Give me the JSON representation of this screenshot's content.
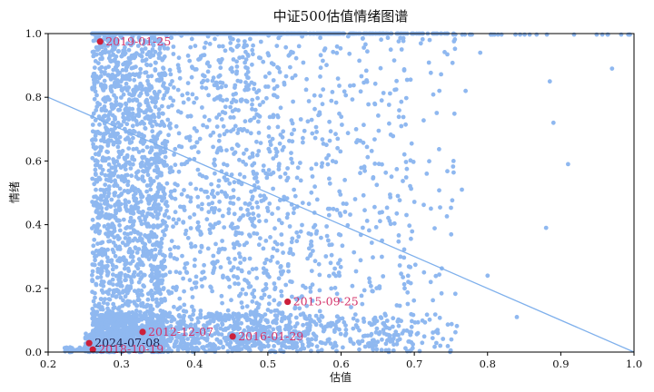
{
  "chart_data": {
    "type": "scatter",
    "title": "中证500估值情绪图谱",
    "xlabel": "估值",
    "ylabel": "情绪",
    "xlim": [
      0.2,
      1.0
    ],
    "ylim": [
      0.0,
      1.0
    ],
    "xticks": [
      "0.2",
      "0.3",
      "0.4",
      "0.5",
      "0.6",
      "0.7",
      "0.8",
      "0.9",
      "1.0"
    ],
    "yticks": [
      "0.0",
      "0.2",
      "0.4",
      "0.6",
      "0.8",
      "1.0"
    ],
    "grid": false,
    "trend_line": {
      "from": [
        0.2,
        0.8
      ],
      "to": [
        1.0,
        0.0
      ]
    },
    "colors": {
      "points": "#8fb8f0",
      "highlight": "#cc1f3a",
      "label": "#d4336a",
      "label_dark": "#1f1f4a",
      "trend": "#7fb0ec"
    },
    "highlights": [
      {
        "x": 0.271,
        "y": 0.975,
        "label": "2019-01-25"
      },
      {
        "x": 0.527,
        "y": 0.158,
        "label": "2015-09-25"
      },
      {
        "x": 0.329,
        "y": 0.063,
        "label": "2012-12-07"
      },
      {
        "x": 0.452,
        "y": 0.049,
        "label": "2016-01-29"
      },
      {
        "x": 0.256,
        "y": 0.028,
        "label": "2024-07-08"
      },
      {
        "x": 0.261,
        "y": 0.008,
        "label": "2018-10-19"
      }
    ]
  }
}
